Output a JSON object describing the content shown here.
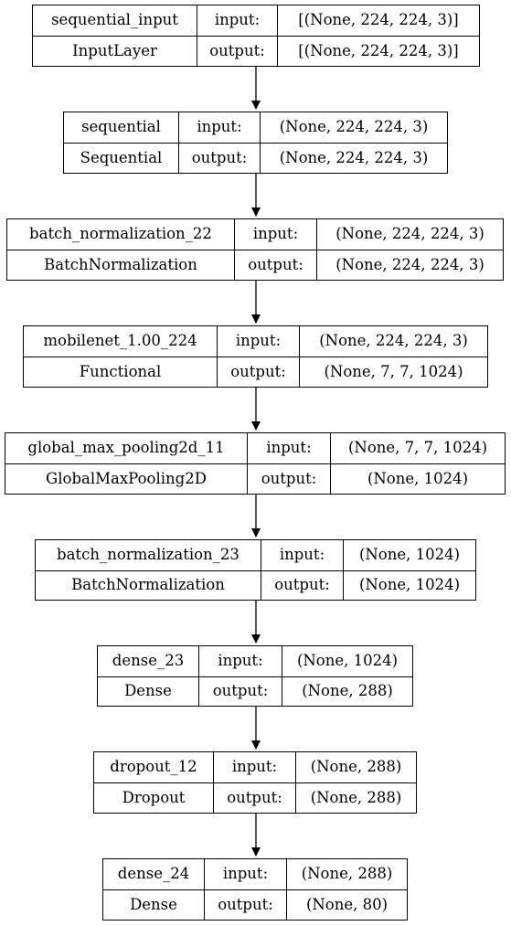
{
  "layers": [
    {
      "name": "sequential_input",
      "type": "InputLayer",
      "in_label": "input:",
      "out_label": "output:",
      "input_shape": "[(None, 224, 224, 3)]",
      "output_shape": "[(None, 224, 224, 3)]"
    },
    {
      "name": "sequential",
      "type": "Sequential",
      "in_label": "input:",
      "out_label": "output:",
      "input_shape": "(None, 224, 224, 3)",
      "output_shape": "(None, 224, 224, 3)"
    },
    {
      "name": "batch_normalization_22",
      "type": "BatchNormalization",
      "in_label": "input:",
      "out_label": "output:",
      "input_shape": "(None, 224, 224, 3)",
      "output_shape": "(None, 224, 224, 3)"
    },
    {
      "name": "mobilenet_1.00_224",
      "type": "Functional",
      "in_label": "input:",
      "out_label": "output:",
      "input_shape": "(None, 224, 224, 3)",
      "output_shape": "(None, 7, 7, 1024)"
    },
    {
      "name": "global_max_pooling2d_11",
      "type": "GlobalMaxPooling2D",
      "in_label": "input:",
      "out_label": "output:",
      "input_shape": "(None, 7, 7, 1024)",
      "output_shape": "(None, 1024)"
    },
    {
      "name": "batch_normalization_23",
      "type": "BatchNormalization",
      "in_label": "input:",
      "out_label": "output:",
      "input_shape": "(None, 1024)",
      "output_shape": "(None, 1024)"
    },
    {
      "name": "dense_23",
      "type": "Dense",
      "in_label": "input:",
      "out_label": "output:",
      "input_shape": "(None, 1024)",
      "output_shape": "(None, 288)"
    },
    {
      "name": "dropout_12",
      "type": "Dropout",
      "in_label": "input:",
      "out_label": "output:",
      "input_shape": "(None, 288)",
      "output_shape": "(None, 288)"
    },
    {
      "name": "dense_24",
      "type": "Dense",
      "in_label": "input:",
      "out_label": "output:",
      "input_shape": "(None, 288)",
      "output_shape": "(None, 80)"
    }
  ]
}
